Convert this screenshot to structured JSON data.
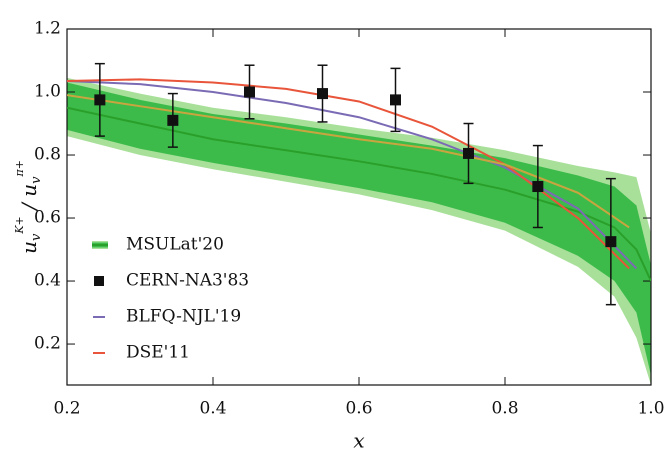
{
  "chart_data": {
    "type": "line",
    "xlabel": "x",
    "ylabel_parts": [
      "u",
      "v",
      "K+",
      " / ",
      "u",
      "v",
      "π+"
    ],
    "xlim": [
      0.2,
      1.0
    ],
    "ylim": [
      0.07,
      1.2
    ],
    "xticks": [
      0.2,
      0.4,
      0.6,
      0.8,
      {
        "value": 1,
        "label": "1.0"
      }
    ],
    "yticks": [
      0.2,
      0.4,
      0.6,
      0.8,
      {
        "value": 1,
        "label": "1.0"
      },
      1.2
    ],
    "series": [
      {
        "name": "MSULat'20",
        "color": "#2aa02a",
        "x": [
          0.2,
          0.3,
          0.4,
          0.5,
          0.6,
          0.7,
          0.8,
          0.9,
          0.95,
          0.98,
          1.0
        ],
        "values": [
          0.95,
          0.9,
          0.85,
          0.815,
          0.78,
          0.74,
          0.69,
          0.62,
          0.57,
          0.5,
          0.4
        ],
        "band_inner": {
          "color": "#3dbb4a",
          "upper": [
            1.03,
            0.975,
            0.93,
            0.9,
            0.865,
            0.83,
            0.79,
            0.735,
            0.7,
            0.64,
            0.45
          ],
          "lower": [
            0.88,
            0.82,
            0.775,
            0.735,
            0.695,
            0.65,
            0.585,
            0.48,
            0.4,
            0.3,
            0.1
          ]
        },
        "band_outer": {
          "color": "#a8e09a",
          "upper": [
            1.045,
            0.995,
            0.95,
            0.92,
            0.885,
            0.855,
            0.815,
            0.765,
            0.745,
            0.73,
            0.55
          ],
          "lower": [
            0.86,
            0.8,
            0.755,
            0.715,
            0.675,
            0.625,
            0.56,
            0.445,
            0.35,
            0.22,
            0.07
          ]
        }
      },
      {
        "name": "CERN-NA3'83",
        "type": "errorbar",
        "color": "#111111",
        "x": [
          0.245,
          0.345,
          0.45,
          0.55,
          0.65,
          0.75,
          0.845,
          0.945
        ],
        "values": [
          0.975,
          0.91,
          1.0,
          0.995,
          0.975,
          0.805,
          0.7,
          0.525
        ],
        "errors": [
          0.115,
          0.085,
          0.085,
          0.09,
          0.1,
          0.095,
          0.13,
          0.2
        ]
      },
      {
        "name": "BLFQ-NJL'19",
        "color": "#7b6bb5",
        "x": [
          0.2,
          0.3,
          0.4,
          0.5,
          0.6,
          0.7,
          0.8,
          0.9,
          0.98
        ],
        "values": [
          1.035,
          1.025,
          1.0,
          0.965,
          0.92,
          0.85,
          0.76,
          0.63,
          0.44
        ]
      },
      {
        "name": "DSE'11",
        "color": "#e8553a",
        "x": [
          0.2,
          0.3,
          0.4,
          0.5,
          0.6,
          0.7,
          0.8,
          0.9,
          0.97
        ],
        "values": [
          1.035,
          1.04,
          1.03,
          1.01,
          0.97,
          0.89,
          0.77,
          0.6,
          0.44
        ]
      },
      {
        "color": "#c9a540",
        "x": [
          0.2,
          0.3,
          0.4,
          0.5,
          0.6,
          0.7,
          0.8,
          0.9,
          0.97
        ],
        "values": [
          0.99,
          0.955,
          0.92,
          0.885,
          0.85,
          0.82,
          0.77,
          0.68,
          0.57
        ]
      }
    ]
  }
}
